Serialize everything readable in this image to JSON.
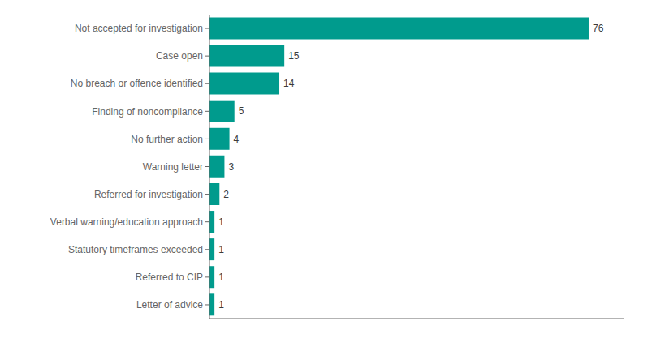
{
  "chart_data": {
    "type": "bar",
    "orientation": "horizontal",
    "categories": [
      "Letter of advice",
      "Referred to CIP",
      "Statutory timeframes exceeded",
      "Verbal warning/education approach",
      "Referred for investigation",
      "Warning letter",
      "No further action",
      "Finding of noncompliance",
      "No breach or offence identified",
      "Case open",
      "Not accepted for investigation"
    ],
    "values": [
      1,
      1,
      1,
      1,
      2,
      3,
      4,
      5,
      14,
      15,
      76
    ],
    "color": "#009B8D",
    "xlim": [
      0,
      83
    ],
    "data_labels": true,
    "tick_labels": "y",
    "grid": false
  }
}
